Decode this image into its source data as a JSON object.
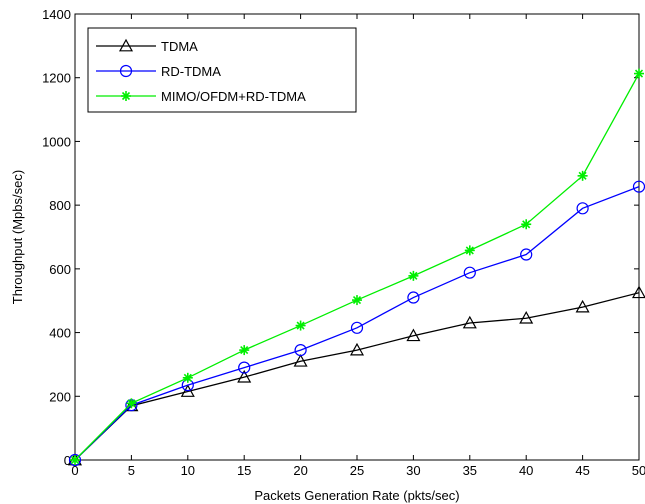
{
  "chart_data": {
    "type": "line",
    "title": "",
    "xlabel": "Packets Generation Rate (pkts/sec)",
    "ylabel": "Throughput (Mpbs/sec)",
    "xlim": [
      0,
      50
    ],
    "ylim": [
      0,
      1400
    ],
    "xticks": [
      0,
      5,
      10,
      15,
      20,
      25,
      30,
      35,
      40,
      45,
      50
    ],
    "yticks": [
      0,
      200,
      400,
      600,
      800,
      1000,
      1200,
      1400
    ],
    "grid": false,
    "legend_position": "top-left",
    "x": [
      0,
      5,
      10,
      15,
      20,
      25,
      30,
      35,
      40,
      45,
      50
    ],
    "series": [
      {
        "name": "TDMA",
        "color": "#000000",
        "marker": "triangle",
        "values": [
          0,
          170,
          215,
          260,
          310,
          345,
          390,
          430,
          445,
          480,
          525
        ]
      },
      {
        "name": "RD-TDMA",
        "color": "#0000ff",
        "marker": "circle",
        "values": [
          0,
          172,
          235,
          290,
          345,
          415,
          510,
          588,
          645,
          790,
          858
        ]
      },
      {
        "name": "MIMO/OFDM+RD-TDMA",
        "color": "#00ee00",
        "marker": "asterisk",
        "values": [
          0,
          178,
          258,
          345,
          422,
          502,
          578,
          658,
          740,
          892,
          1213
        ]
      }
    ]
  }
}
